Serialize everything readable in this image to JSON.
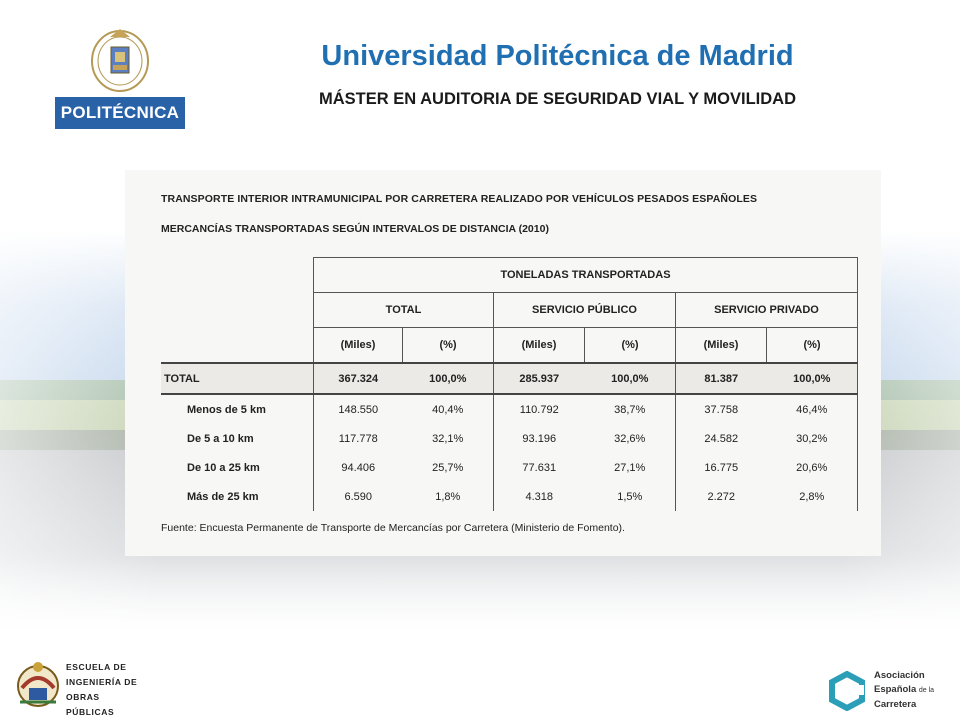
{
  "header": {
    "university_logo_text": "POLITÉCNICA",
    "title": "Universidad Politécnica de Madrid",
    "subtitle": "MÁSTER EN AUDITORIA DE SEGURIDAD VIAL Y MOVILIDAD"
  },
  "document": {
    "heading_line1": "TRANSPORTE INTERIOR INTRAMUNICIPAL POR CARRETERA REALIZADO POR VEHÍCULOS PESADOS ESPAÑOLES",
    "heading_line2": "MERCANCÍAS TRANSPORTADAS SEGÚN INTERVALOS DE DISTANCIA (2010)",
    "table": {
      "group_header": "TONELADAS TRANSPORTADAS",
      "column_groups": [
        "TOTAL",
        "SERVICIO PÚBLICO",
        "SERVICIO PRIVADO"
      ],
      "unit_headers": [
        "(Miles)",
        "(%)",
        "(Miles)",
        "(%)",
        "(Miles)",
        "(%)"
      ],
      "total_row": {
        "label": "TOTAL",
        "values": [
          "367.324",
          "100,0%",
          "285.937",
          "100,0%",
          "81.387",
          "100,0%"
        ]
      },
      "rows": [
        {
          "label": "Menos de 5 km",
          "values": [
            "148.550",
            "40,4%",
            "110.792",
            "38,7%",
            "37.758",
            "46,4%"
          ]
        },
        {
          "label": "De 5 a 10 km",
          "values": [
            "117.778",
            "32,1%",
            "93.196",
            "32,6%",
            "24.582",
            "30,2%"
          ]
        },
        {
          "label": "De 10 a 25 km",
          "values": [
            "94.406",
            "25,7%",
            "77.631",
            "27,1%",
            "16.775",
            "20,6%"
          ]
        },
        {
          "label": "Más de 25 km",
          "values": [
            "6.590",
            "1,8%",
            "4.318",
            "1,5%",
            "2.272",
            "2,8%"
          ]
        }
      ]
    },
    "source": "Fuente: Encuesta Permanente de Transporte de Mercancías por Carretera  (Ministerio de Fomento)."
  },
  "footer": {
    "school_logo_lines": [
      "ESCUELA DE",
      "INGENIERÍA DE",
      "OBRAS PÚBLICAS"
    ],
    "association_logo_lines": [
      "Asociación",
      "Española",
      "de la",
      "Carretera"
    ]
  },
  "colors": {
    "title_blue": "#1f6fb2",
    "logo_blue": "#2a62a8",
    "aec_teal": "#2b9fb8"
  }
}
